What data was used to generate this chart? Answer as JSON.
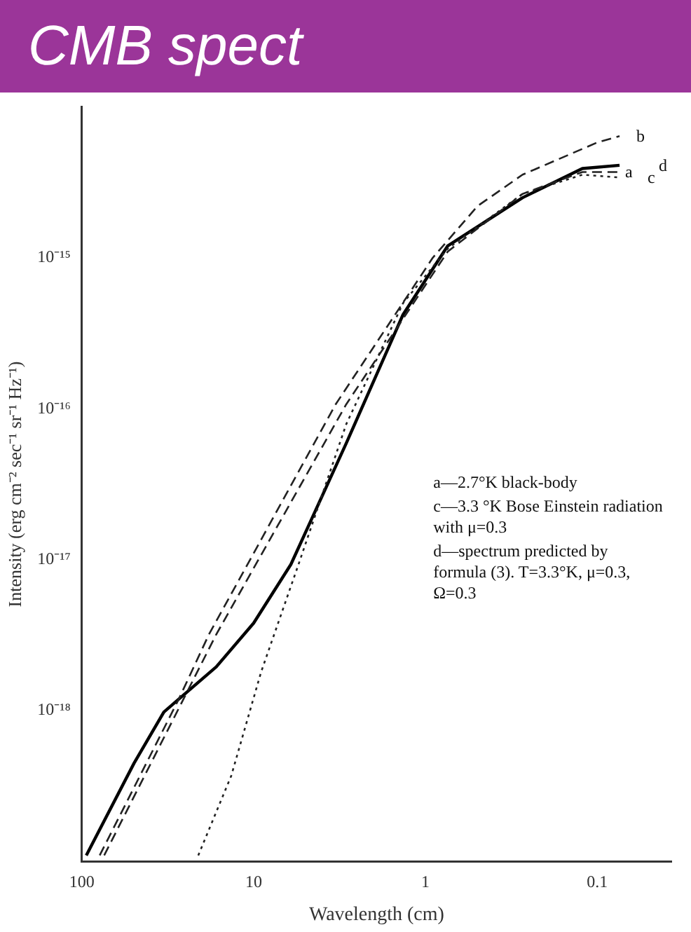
{
  "chart_data": {
    "type": "line",
    "title": "CMB spect",
    "xlabel": "Wavelength (cm)",
    "ylabel": "Intensity (erg cm⁻² sec⁻¹ sr⁻¹ Hz⁻¹)",
    "log": "xy",
    "xlim": [
      100,
      0.037
    ],
    "ylim": [
      1e-19,
      1e-14
    ],
    "xticks": [
      100,
      10,
      1,
      0.1
    ],
    "yticks": [
      {
        "value": 1e-15,
        "label": "10⁻¹⁵"
      },
      {
        "value": 1e-16,
        "label": "10⁻¹⁶"
      },
      {
        "value": 1e-17,
        "label": "10⁻¹⁷"
      },
      {
        "value": 1e-18,
        "label": "10⁻¹⁸"
      }
    ],
    "grid": false,
    "legend": false,
    "marker": "none",
    "series": [
      {
        "name": "a",
        "color": "#222222",
        "line_style": "dashed",
        "x": [
          74.1,
          16.5,
          2.89,
          0.741,
          0.272,
          0.122,
          0.0741
        ],
        "values": [
          1.1e-19,
          3.2e-18,
          1.07e-16,
          1.1e-15,
          2.65e-15,
          3.7e-15,
          3.7e-15
        ]
      },
      {
        "name": "b",
        "color": "#222222",
        "line_style": "dashed",
        "x": [
          78.7,
          27.2,
          18.2,
          3.33,
          0.906,
          0.497,
          0.272,
          0.1,
          0.0741
        ],
        "values": [
          1.1e-19,
          1.2e-18,
          3.2e-18,
          1.07e-16,
          1e-15,
          2.2e-15,
          3.55e-15,
          5.8e-15,
          6.4e-15
        ]
      },
      {
        "name": "c",
        "color": "#222222",
        "line_style": "dotted",
        "x": [
          21.0,
          13.5,
          9.05,
          5.48,
          2.89,
          1.35,
          0.741,
          0.272,
          0.122,
          0.0741
        ],
        "values": [
          1.1e-19,
          3.7e-19,
          1.8e-18,
          9.3e-18,
          7.9e-17,
          5e-16,
          1.15e-15,
          2.65e-15,
          3.55e-15,
          3.4e-15
        ]
      },
      {
        "name": "d",
        "color": "#000000",
        "line_style": "solid",
        "x": [
          94.2,
          49.6,
          33.3,
          16.5,
          10,
          6.07,
          2.89,
          1.35,
          0.741,
          0.272,
          0.122,
          0.0741
        ],
        "values": [
          1.1e-19,
          4.5e-19,
          9.8e-19,
          1.95e-18,
          3.8e-18,
          9.3e-18,
          5.9e-17,
          4.2e-16,
          1.2e-15,
          2.5e-15,
          3.9e-15,
          4.1e-15
        ]
      }
    ],
    "annotations": [
      "a—2.7°K black-body",
      "c—3.3 °K Bose Einstein radiation with μ=0.3",
      "d—spectrum predicted by formula (3). T=3.3°K, μ=0.3, Ω=0.3"
    ]
  }
}
